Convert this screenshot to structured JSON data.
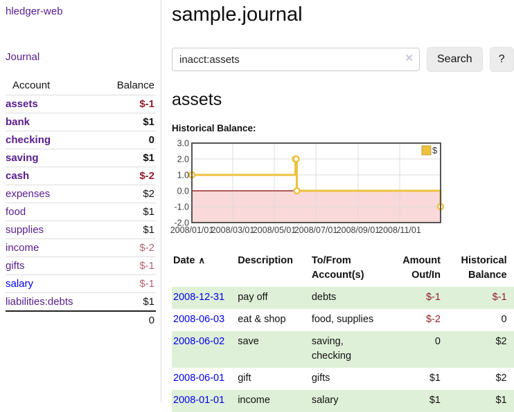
{
  "app": {
    "brand": "hledger-web",
    "nav_journal": "Journal"
  },
  "sidebar": {
    "header": {
      "account": "Account",
      "balance": "Balance"
    },
    "accounts": [
      {
        "name": "assets",
        "balance": "$-1",
        "level": 0,
        "bold": true,
        "neg": "strong"
      },
      {
        "name": "bank",
        "balance": "$1",
        "level": 1,
        "bold": true,
        "neg": "none"
      },
      {
        "name": "checking",
        "balance": "0",
        "level": 2,
        "bold": true,
        "neg": "none"
      },
      {
        "name": "saving",
        "balance": "$1",
        "level": 2,
        "bold": true,
        "neg": "none"
      },
      {
        "name": "cash",
        "balance": "$-2",
        "level": 1,
        "bold": true,
        "neg": "strong"
      },
      {
        "name": "expenses",
        "balance": "$2",
        "level": 0,
        "bold": false,
        "neg": "none"
      },
      {
        "name": "food",
        "balance": "$1",
        "level": 1,
        "bold": false,
        "neg": "none"
      },
      {
        "name": "supplies",
        "balance": "$1",
        "level": 1,
        "bold": false,
        "neg": "none"
      },
      {
        "name": "income",
        "balance": "$-2",
        "level": 0,
        "bold": false,
        "neg": "muted"
      },
      {
        "name": "gifts",
        "balance": "$-1",
        "level": 1,
        "bold": false,
        "neg": "muted"
      },
      {
        "name": "salary",
        "balance": "$-1",
        "level": 1,
        "bold": false,
        "neg": "muted",
        "unvisited": true
      },
      {
        "name": "liabilities:debts",
        "balance": "$1",
        "level": 0,
        "bold": false,
        "neg": "none"
      }
    ],
    "total": "0"
  },
  "main": {
    "title": "sample.journal",
    "search": {
      "value": "inacct:assets",
      "clear_icon": "✕",
      "button": "Search",
      "help": "?"
    },
    "account_heading": "assets",
    "chart_label": "Historical Balance:"
  },
  "chart_data": {
    "type": "line",
    "title": "Historical Balance",
    "step": true,
    "series": [
      {
        "name": "$",
        "color": "#edc240",
        "points": [
          [
            "2008-01-01",
            1
          ],
          [
            "2008-06-01",
            2
          ],
          [
            "2008-06-02",
            2
          ],
          [
            "2008-06-03",
            0
          ],
          [
            "2008-12-31",
            -1
          ]
        ]
      }
    ],
    "x_start": "2008-01-01",
    "x_days": 365,
    "x_ticks": [
      "2008/01/01",
      "2008/03/01",
      "2008/05/01",
      "2008/07/01",
      "2008/09/01",
      "2008/11/01"
    ],
    "y_ticks": [
      "3.0",
      "2.0",
      "1.0",
      "0.0",
      "-1.0",
      "-2.0"
    ],
    "ylim": [
      -2,
      3
    ],
    "grid": true,
    "negative_fill": "#f9d9d9",
    "zero_line_color": "#8b0000",
    "legend": {
      "label": "$",
      "position": "top-right",
      "swatch_color": "#edc240"
    }
  },
  "table": {
    "headers": [
      "Date",
      "Description",
      "To/From Account(s)",
      "Amount Out/In",
      "Historical Balance"
    ],
    "sort_icon": "∧",
    "rows": [
      {
        "date": "2008-12-31",
        "description": "pay off",
        "accounts": "debts",
        "amount": "$-1",
        "balance": "$-1",
        "amount_neg": true,
        "balance_neg": true
      },
      {
        "date": "2008-06-03",
        "description": "eat & shop",
        "accounts": "food, supplies",
        "amount": "$-2",
        "balance": "0",
        "amount_neg": true,
        "balance_neg": false
      },
      {
        "date": "2008-06-02",
        "description": "save",
        "accounts": "saving, checking",
        "amount": "0",
        "balance": "$2",
        "amount_neg": false,
        "balance_neg": false
      },
      {
        "date": "2008-06-01",
        "description": "gift",
        "accounts": "gifts",
        "amount": "$1",
        "balance": "$2",
        "amount_neg": false,
        "balance_neg": false
      },
      {
        "date": "2008-01-01",
        "description": "income",
        "accounts": "salary",
        "amount": "$1",
        "balance": "$1",
        "amount_neg": false,
        "balance_neg": false
      }
    ]
  }
}
